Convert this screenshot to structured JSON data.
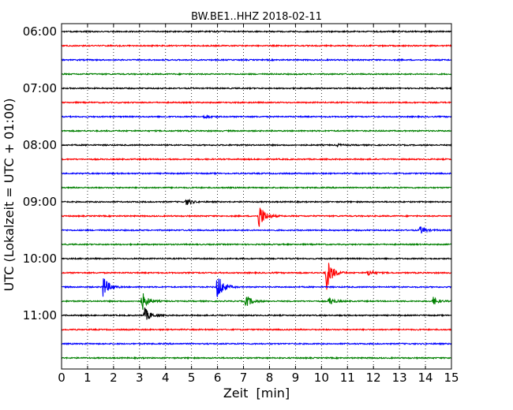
{
  "chart_data": {
    "type": "line",
    "title": "BW.BE1..HHZ 2018-02-11",
    "xlabel": "Zeit  [min]",
    "ylabel": "UTC (Lokalzeit = UTC + 01:00)",
    "xlim": [
      0,
      15
    ],
    "x_ticks": [
      0,
      1,
      2,
      3,
      4,
      5,
      6,
      7,
      8,
      9,
      10,
      11,
      12,
      13,
      14,
      15
    ],
    "grid": "vertical-dotted",
    "y_tick_labels": [
      "06:00",
      "07:00",
      "08:00",
      "09:00",
      "10:00",
      "11:00"
    ],
    "trace_colors": [
      "#000000",
      "#ff0000",
      "#0000ff",
      "#008000"
    ],
    "traces": [
      {
        "start": "06:00",
        "events": []
      },
      {
        "start": "06:15",
        "events": []
      },
      {
        "start": "06:30",
        "events": []
      },
      {
        "start": "06:45",
        "events": []
      },
      {
        "start": "07:00",
        "events": []
      },
      {
        "start": "07:15",
        "events": []
      },
      {
        "start": "07:30",
        "events": [
          {
            "t": 5.5,
            "amp": 0.3
          }
        ]
      },
      {
        "start": "07:45",
        "events": []
      },
      {
        "start": "08:00",
        "events": [
          {
            "t": 10.6,
            "amp": 0.2
          }
        ]
      },
      {
        "start": "08:15",
        "events": []
      },
      {
        "start": "08:30",
        "events": []
      },
      {
        "start": "08:45",
        "events": []
      },
      {
        "start": "09:00",
        "events": [
          {
            "t": 4.8,
            "amp": 0.5
          }
        ]
      },
      {
        "start": "09:15",
        "events": [
          {
            "t": 7.6,
            "amp": 2.2
          }
        ]
      },
      {
        "start": "09:30",
        "events": [
          {
            "t": 13.8,
            "amp": 0.6
          }
        ]
      },
      {
        "start": "09:45",
        "events": []
      },
      {
        "start": "10:00",
        "events": []
      },
      {
        "start": "10:15",
        "events": [
          {
            "t": 10.2,
            "amp": 2.8
          },
          {
            "t": 11.8,
            "amp": 0.5
          }
        ]
      },
      {
        "start": "10:30",
        "events": [
          {
            "t": 1.6,
            "amp": 1.8
          },
          {
            "t": 6.0,
            "amp": 2.3
          }
        ]
      },
      {
        "start": "10:45",
        "events": [
          {
            "t": 3.1,
            "amp": 1.5
          },
          {
            "t": 7.1,
            "amp": 1.0
          },
          {
            "t": 10.3,
            "amp": 0.6
          },
          {
            "t": 14.3,
            "amp": 0.6
          }
        ]
      },
      {
        "start": "11:00",
        "events": [
          {
            "t": 3.2,
            "amp": 1.2
          }
        ]
      },
      {
        "start": "11:15",
        "events": []
      },
      {
        "start": "11:30",
        "events": []
      },
      {
        "start": "11:45",
        "events": []
      }
    ]
  }
}
